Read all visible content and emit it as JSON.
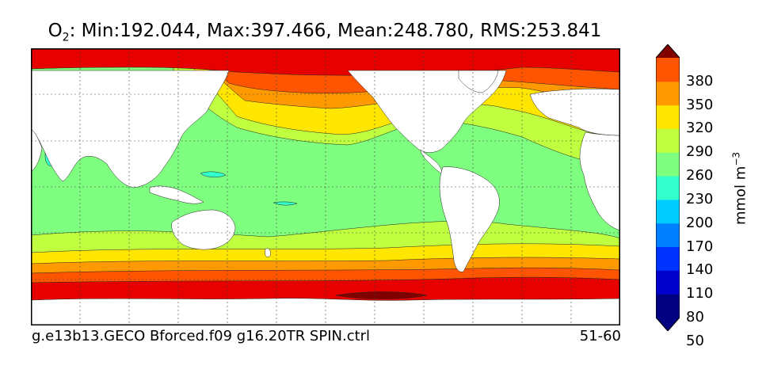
{
  "title": {
    "var_main": "O",
    "var_sub": "2",
    "stats": ": Min:192.044, Max:397.466, Mean:248.780, RMS:253.841"
  },
  "footer": {
    "case_name": "g.e13b13.GECO Bforced.f09 g16.20TR SPIN.ctrl",
    "years": "51-60"
  },
  "colorbar": {
    "units_main": "mmol m",
    "units_sup": "−3",
    "ticks": [
      "380",
      "350",
      "320",
      "290",
      "260",
      "230",
      "200",
      "170",
      "140",
      "110",
      "80",
      "50"
    ],
    "colors": [
      "#000080",
      "#0000cd",
      "#0033ff",
      "#0080ff",
      "#00ccff",
      "#33ffcc",
      "#7fff7f",
      "#bfff3f",
      "#ffe600",
      "#ff9900",
      "#ff5500",
      "#e60000",
      "#800000"
    ]
  },
  "map_colors": {
    "land": "#ffffff",
    "c170": "#33ffcc",
    "c200": "#7fff7f",
    "c230": "#bfff3f",
    "c260": "#ffe600",
    "c290": "#ff9900",
    "c320": "#ff5500",
    "c350": "#e60000",
    "c380": "#800000"
  }
}
